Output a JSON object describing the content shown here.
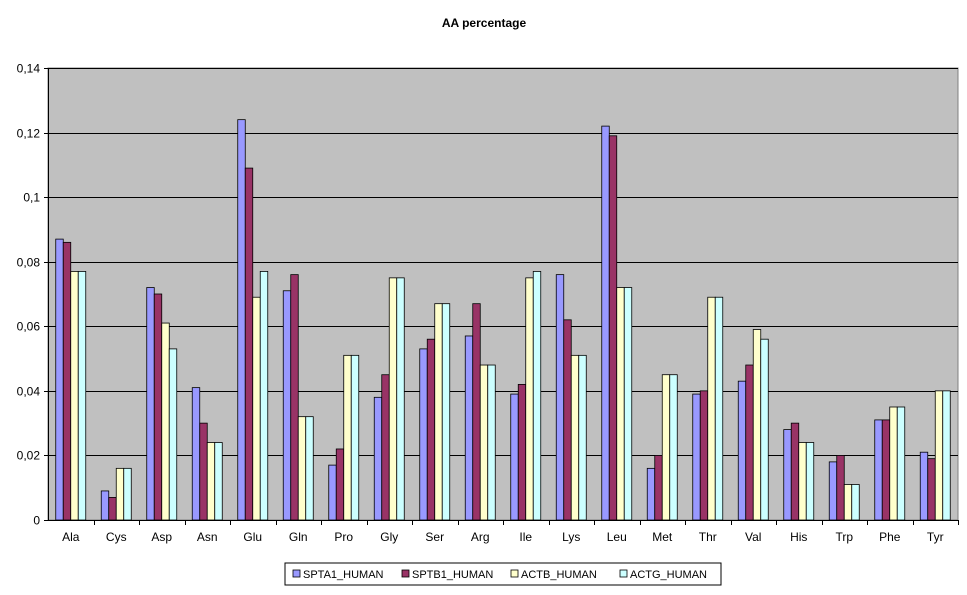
{
  "chart_data": {
    "type": "bar",
    "title": "AA percentage",
    "xlabel": "",
    "ylabel": "",
    "ylim": [
      0,
      0.14
    ],
    "ytick_step": 0.02,
    "ytick_labels": [
      "0",
      "0,02",
      "0,04",
      "0,06",
      "0,08",
      "0,1",
      "0,12",
      "0,14"
    ],
    "grid": true,
    "legend_position": "bottom",
    "categories": [
      "Ala",
      "Cys",
      "Asp",
      "Asn",
      "Glu",
      "Gln",
      "Pro",
      "Gly",
      "Ser",
      "Arg",
      "Ile",
      "Lys",
      "Leu",
      "Met",
      "Thr",
      "Val",
      "His",
      "Trp",
      "Phe",
      "Tyr"
    ],
    "series": [
      {
        "name": "SPTA1_HUMAN",
        "color": "#9999ff",
        "values": [
          0.087,
          0.009,
          0.072,
          0.041,
          0.124,
          0.071,
          0.017,
          0.038,
          0.053,
          0.057,
          0.039,
          0.076,
          0.122,
          0.016,
          0.039,
          0.043,
          0.028,
          0.018,
          0.031,
          0.021
        ]
      },
      {
        "name": "SPTB1_HUMAN",
        "color": "#993366",
        "values": [
          0.086,
          0.007,
          0.07,
          0.03,
          0.109,
          0.076,
          0.022,
          0.045,
          0.056,
          0.067,
          0.042,
          0.062,
          0.119,
          0.02,
          0.04,
          0.048,
          0.03,
          0.02,
          0.031,
          0.019
        ]
      },
      {
        "name": "ACTB_HUMAN",
        "color": "#ffffcc",
        "values": [
          0.077,
          0.016,
          0.061,
          0.024,
          0.069,
          0.032,
          0.051,
          0.075,
          0.067,
          0.048,
          0.075,
          0.051,
          0.072,
          0.045,
          0.069,
          0.059,
          0.024,
          0.011,
          0.035,
          0.04
        ]
      },
      {
        "name": "ACTG_HUMAN",
        "color": "#ccffff",
        "values": [
          0.077,
          0.016,
          0.053,
          0.024,
          0.077,
          0.032,
          0.051,
          0.075,
          0.067,
          0.048,
          0.077,
          0.051,
          0.072,
          0.045,
          0.069,
          0.056,
          0.024,
          0.011,
          0.035,
          0.04
        ]
      }
    ],
    "plot_background": "#c0c0c0"
  }
}
